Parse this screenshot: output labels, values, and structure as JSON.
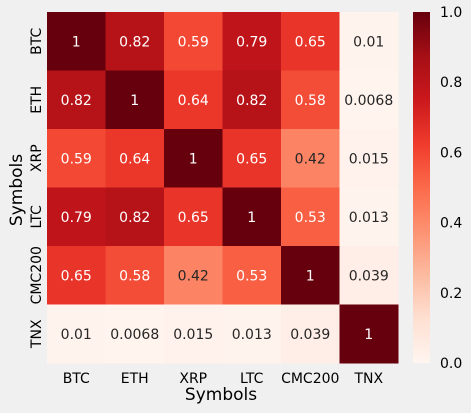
{
  "chart_data": {
    "type": "heatmap",
    "title": "",
    "xlabel": "Symbols",
    "ylabel": "Symbols",
    "x_categories": [
      "BTC",
      "ETH",
      "XRP",
      "LTC",
      "CMC200",
      "TNX"
    ],
    "y_categories": [
      "BTC",
      "ETH",
      "XRP",
      "LTC",
      "CMC200",
      "TNX"
    ],
    "values": [
      [
        1,
        0.82,
        0.59,
        0.79,
        0.65,
        0.01
      ],
      [
        0.82,
        1,
        0.64,
        0.82,
        0.58,
        0.0068
      ],
      [
        0.59,
        0.64,
        1,
        0.65,
        0.42,
        0.015
      ],
      [
        0.79,
        0.82,
        0.65,
        1,
        0.53,
        0.013
      ],
      [
        0.65,
        0.58,
        0.42,
        0.53,
        1,
        0.039
      ],
      [
        0.01,
        0.0068,
        0.015,
        0.013,
        0.039,
        1
      ]
    ],
    "cell_labels": [
      [
        "1",
        "0.82",
        "0.59",
        "0.79",
        "0.65",
        "0.01"
      ],
      [
        "0.82",
        "1",
        "0.64",
        "0.82",
        "0.58",
        "0.0068"
      ],
      [
        "0.59",
        "0.64",
        "1",
        "0.65",
        "0.42",
        "0.015"
      ],
      [
        "0.79",
        "0.82",
        "0.65",
        "1",
        "0.53",
        "0.013"
      ],
      [
        "0.65",
        "0.58",
        "0.42",
        "0.53",
        "1",
        "0.039"
      ],
      [
        "0.01",
        "0.0068",
        "0.015",
        "0.013",
        "0.039",
        "1"
      ]
    ],
    "colormap": "Reds",
    "value_range": [
      0,
      1
    ],
    "colorbar_ticks": [
      "0.0",
      "0.2",
      "0.4",
      "0.6",
      "0.8",
      "1.0"
    ],
    "grid": false
  },
  "colors": {
    "background": "#f0f0f0",
    "colormap_stops": [
      "#fff5f0",
      "#fee0d2",
      "#fcbba1",
      "#fc9272",
      "#fb6a4a",
      "#ef3b2c",
      "#cb181d",
      "#a50f15",
      "#67000d"
    ]
  }
}
